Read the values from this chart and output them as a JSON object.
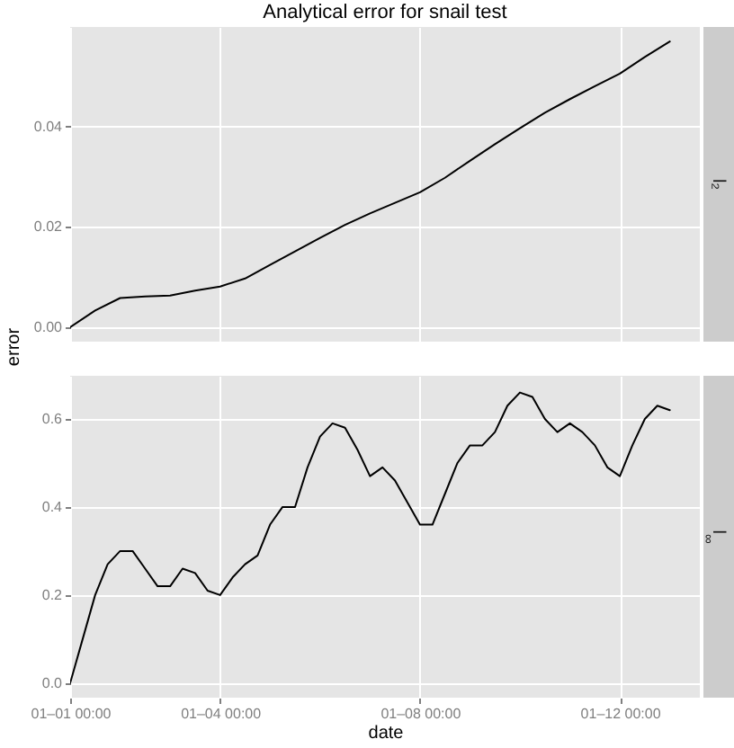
{
  "chart_data": [
    {
      "type": "line",
      "title": "Analytical error for snail test",
      "ylabel": "error",
      "x": [
        "--01-01T00:00",
        "--01-01T12:00",
        "--01-02T00:00",
        "--01-02T12:00",
        "--01-03T00:00",
        "--01-03T12:00",
        "--01-04T00:00",
        "--01-04T12:00",
        "--01-05T00:00",
        "--01-05T12:00",
        "--01-06T00:00",
        "--01-06T12:00",
        "--01-07T00:00",
        "--01-07T12:00",
        "--01-08T00:00",
        "--01-08T12:00",
        "--01-09T00:00",
        "--01-09T12:00",
        "--01-10T00:00",
        "--01-10T12:00",
        "--01-11T00:00",
        "--01-11T12:00",
        "--01-12T00:00",
        "--01-12T12:00",
        "--01-13T00:00"
      ],
      "series": [
        {
          "name": "l₂",
          "color": "#000000",
          "values": [
            0,
            0.0033,
            0.0058,
            0.0061,
            0.0063,
            0.0073,
            0.0081,
            0.0097,
            0.0124,
            0.0151,
            0.0178,
            0.0204,
            0.0227,
            0.0248,
            0.0269,
            0.0298,
            0.0332,
            0.0365,
            0.0397,
            0.0428,
            0.0455,
            0.0481,
            0.0506,
            0.0539,
            0.057
          ]
        }
      ],
      "xlim": [
        "--01-01T00:00",
        "--01-13T14:24"
      ],
      "xticks": [
        {
          "value": "--01-01T00:00",
          "label": null
        },
        {
          "value": "--01-04T00:00",
          "label": null
        },
        {
          "value": "--01-08T00:00",
          "label": null
        },
        {
          "value": "--01-12T00:00",
          "label": null
        }
      ],
      "ylim": [
        -0.0029,
        0.0599
      ],
      "yticks": [
        {
          "value": 0,
          "label": "0.00"
        },
        0.02,
        0.04
      ],
      "grid": true,
      "tick_labels": "y"
    },
    {
      "type": "line",
      "xlabel": "date",
      "x": [
        "--01-01T00:00",
        "--01-01T06:00",
        "--01-01T12:00",
        "--01-01T18:00",
        "--01-02T00:00",
        "--01-02T06:00",
        "--01-02T12:00",
        "--01-02T18:00",
        "--01-03T00:00",
        "--01-03T06:00",
        "--01-03T12:00",
        "--01-03T18:00",
        "--01-04T00:00",
        "--01-04T06:00",
        "--01-04T12:00",
        "--01-04T18:00",
        "--01-05T00:00",
        "--01-05T06:00",
        "--01-05T12:00",
        "--01-05T18:00",
        "--01-06T00:00",
        "--01-06T06:00",
        "--01-06T12:00",
        "--01-06T18:00",
        "--01-07T00:00",
        "--01-07T06:00",
        "--01-07T12:00",
        "--01-07T18:00",
        "--01-08T00:00",
        "--01-08T06:00",
        "--01-08T12:00",
        "--01-08T18:00",
        "--01-09T00:00",
        "--01-09T06:00",
        "--01-09T12:00",
        "--01-09T18:00",
        "--01-10T00:00",
        "--01-10T06:00",
        "--01-10T12:00",
        "--01-10T18:00",
        "--01-11T00:00",
        "--01-11T06:00",
        "--01-11T12:00",
        "--01-11T18:00",
        "--01-12T00:00",
        "--01-12T06:00",
        "--01-12T12:00",
        "--01-12T18:00",
        "--01-13T00:00"
      ],
      "series": [
        {
          "name": "l$_{∞}$",
          "color": "#000000",
          "values": [
            0,
            0.1,
            0.2,
            0.27,
            0.3,
            0.3,
            0.26,
            0.22,
            0.22,
            0.26,
            0.25,
            0.21,
            0.2,
            0.24,
            0.27,
            0.29,
            0.36,
            0.4,
            0.4,
            0.49,
            0.56,
            0.59,
            0.58,
            0.53,
            0.47,
            0.49,
            0.46,
            0.41,
            0.36,
            0.36,
            0.43,
            0.5,
            0.54,
            0.54,
            0.57,
            0.63,
            0.66,
            0.65,
            0.6,
            0.57,
            0.59,
            0.57,
            0.54,
            0.49,
            0.47,
            0.54,
            0.6,
            0.63,
            0.62
          ]
        }
      ],
      "xlim": [
        "--01-01T00:00",
        "--01-13T14:24"
      ],
      "xticks": [
        {
          "value": "--01-01T00:00",
          "label": "01–01 00:00"
        },
        {
          "value": "--01-04T00:00",
          "label": "01–04 00:00"
        },
        {
          "value": "--01-08T00:00",
          "label": "01–08 00:00"
        },
        {
          "value": "--01-12T00:00",
          "label": "01–12 00:00"
        }
      ],
      "ylim": [
        -0.033,
        0.698
      ],
      "yticks": [
        {
          "value": 0,
          "label": "0.0"
        },
        0.2,
        0.4,
        0.6
      ],
      "grid": true
    }
  ]
}
